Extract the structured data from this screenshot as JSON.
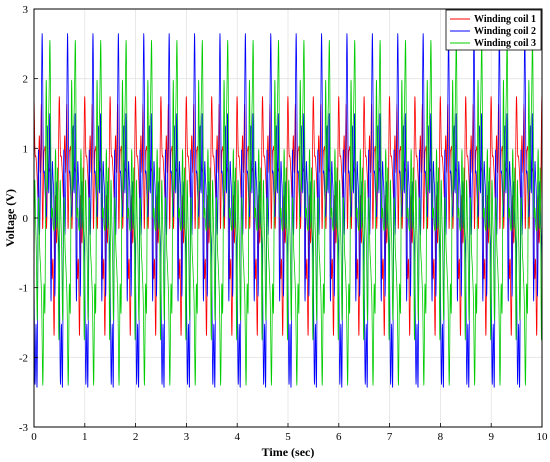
{
  "chart_data": {
    "type": "line",
    "xlabel": "Time (sec)",
    "ylabel": "Voltage (V)",
    "xlim": [
      0,
      10
    ],
    "ylim": [
      -3,
      3
    ],
    "xticks": [
      "0",
      "1",
      "2",
      "3",
      "4",
      "5",
      "6",
      "7",
      "8",
      "9",
      "10"
    ],
    "yticks": [
      "-3",
      "-2",
      "-1",
      "0",
      "1",
      "2",
      "3"
    ],
    "grid": true,
    "legend_position": "top-right",
    "series": [
      {
        "name": "Winding coil 1",
        "color": "#ff0000",
        "period": 0.5,
        "phase": 0.0,
        "peak_max": 1.75,
        "peak_min": -1.7,
        "x": [
          0.0,
          0.05,
          0.08,
          0.1,
          0.14,
          0.18,
          0.22,
          0.26,
          0.3,
          0.34,
          0.38,
          0.42,
          0.46
        ],
        "y": [
          0.0,
          -1.4,
          0.2,
          0.8,
          -0.6,
          0.5,
          -0.3,
          0.7,
          -0.5,
          0.3,
          1.7,
          -0.6,
          0.4
        ]
      },
      {
        "name": "Winding coil 2",
        "color": "#0000ff",
        "period": 0.5,
        "phase": 0.17,
        "peak_max": 2.65,
        "peak_min": -2.45,
        "x": [
          0.0,
          0.05,
          0.08,
          0.1,
          0.14,
          0.18,
          0.22,
          0.26,
          0.3,
          0.34,
          0.38,
          0.42,
          0.46
        ],
        "y": [
          0.0,
          -2.4,
          0.3,
          1.0,
          -0.7,
          0.6,
          -0.4,
          0.8,
          -0.6,
          0.4,
          2.6,
          -0.7,
          0.5
        ]
      },
      {
        "name": "Winding coil 3",
        "color": "#00cc00",
        "period": 0.5,
        "phase": 0.33,
        "peak_max": 2.55,
        "peak_min": -2.4,
        "x": [
          0.0,
          0.05,
          0.08,
          0.1,
          0.14,
          0.18,
          0.22,
          0.26,
          0.3,
          0.34,
          0.38,
          0.42,
          0.46
        ],
        "y": [
          0.0,
          -2.3,
          0.3,
          1.0,
          -0.7,
          0.6,
          -0.4,
          0.8,
          -0.6,
          0.4,
          2.5,
          -0.7,
          0.5
        ]
      }
    ]
  }
}
